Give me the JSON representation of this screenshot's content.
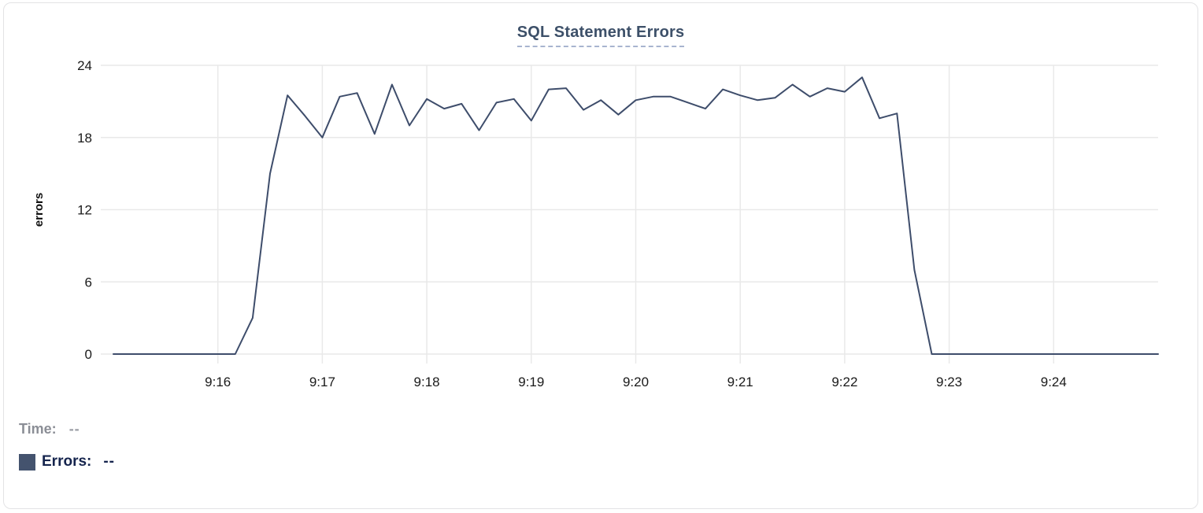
{
  "card": {
    "title": "SQL Statement Errors"
  },
  "colors": {
    "series": "#3e4d6b",
    "legend_swatch": "#44536e",
    "title_text": "#3d5069",
    "title_underline": "#a8b4cf",
    "grid": "#e9e9e9",
    "tick_text": "#1a1a1a",
    "time_text": "#8b8e96",
    "errors_text": "#15244d",
    "card_border": "#e3e3e5"
  },
  "chart_data": {
    "type": "line",
    "title": "SQL Statement Errors",
    "xlabel": "",
    "ylabel": "errors",
    "ylim": [
      0,
      24
    ],
    "yticks": [
      0,
      6,
      12,
      18,
      24
    ],
    "xticks": [
      "9:16",
      "9:17",
      "9:18",
      "9:19",
      "9:20",
      "9:21",
      "9:22",
      "9:23",
      "9:24"
    ],
    "x_start": "9:15:00",
    "x_end": "9:25:00",
    "interval_seconds": 10,
    "grid": true,
    "legend_position": "bottom-left",
    "series": [
      {
        "name": "Errors",
        "x": [
          "9:15:00",
          "9:15:10",
          "9:15:20",
          "9:15:30",
          "9:15:40",
          "9:15:50",
          "9:16:00",
          "9:16:10",
          "9:16:20",
          "9:16:30",
          "9:16:40",
          "9:16:50",
          "9:17:00",
          "9:17:10",
          "9:17:20",
          "9:17:30",
          "9:17:40",
          "9:17:50",
          "9:18:00",
          "9:18:10",
          "9:18:20",
          "9:18:30",
          "9:18:40",
          "9:18:50",
          "9:19:00",
          "9:19:10",
          "9:19:20",
          "9:19:30",
          "9:19:40",
          "9:19:50",
          "9:20:00",
          "9:20:10",
          "9:20:20",
          "9:20:30",
          "9:20:40",
          "9:20:50",
          "9:21:00",
          "9:21:10",
          "9:21:20",
          "9:21:30",
          "9:21:40",
          "9:21:50",
          "9:22:00",
          "9:22:10",
          "9:22:20",
          "9:22:30",
          "9:22:40",
          "9:22:50",
          "9:23:00",
          "9:23:10",
          "9:23:20",
          "9:23:30",
          "9:23:40",
          "9:23:50",
          "9:24:00",
          "9:24:10",
          "9:24:20",
          "9:24:30",
          "9:24:40",
          "9:24:50",
          "9:25:00"
        ],
        "values": [
          0,
          0,
          0,
          0,
          0,
          0,
          0,
          0,
          3,
          15,
          21.5,
          19.8,
          18,
          21.4,
          21.7,
          18.3,
          22.4,
          19,
          21.2,
          20.4,
          20.8,
          18.6,
          20.9,
          21.2,
          19.4,
          22,
          22.1,
          20.3,
          21.1,
          19.9,
          21.1,
          21.4,
          21.4,
          20.9,
          20.4,
          22,
          21.5,
          21.1,
          21.3,
          22.4,
          21.4,
          22.1,
          21.8,
          23,
          19.6,
          20,
          7,
          0,
          0,
          0,
          0,
          0,
          0,
          0,
          0,
          0,
          0,
          0,
          0,
          0,
          0
        ]
      }
    ]
  },
  "footer": {
    "time_label": "Time:",
    "time_value": "--",
    "errors_label": "Errors:",
    "errors_value": "--"
  }
}
